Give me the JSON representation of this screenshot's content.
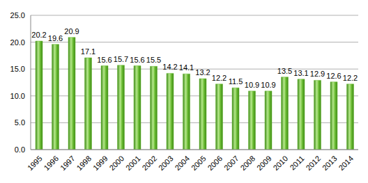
{
  "chart_data": {
    "type": "bar",
    "categories": [
      "1995",
      "1996",
      "1997",
      "1998",
      "1999",
      "2000",
      "2001",
      "2002",
      "2003",
      "2004",
      "2005",
      "2006",
      "2007",
      "2008",
      "2009",
      "2010",
      "2011",
      "2012",
      "2013",
      "2014"
    ],
    "values": [
      20.2,
      19.6,
      20.9,
      17.1,
      15.6,
      15.7,
      15.6,
      15.5,
      14.2,
      14.1,
      13.2,
      12.2,
      11.5,
      10.9,
      10.9,
      13.5,
      13.1,
      12.9,
      12.6,
      12.2
    ],
    "color": "#66b82e",
    "ylim": [
      0,
      25
    ],
    "yticks": [
      {
        "value": 0,
        "label": "0.0"
      },
      {
        "value": 5,
        "label": "5.0"
      },
      {
        "value": 10,
        "label": "10.0"
      },
      {
        "value": 15,
        "label": "15.0"
      },
      {
        "value": 20,
        "label": "20.0"
      },
      {
        "value": 25,
        "label": "25.0"
      }
    ],
    "grid": true,
    "data_labels": true
  }
}
